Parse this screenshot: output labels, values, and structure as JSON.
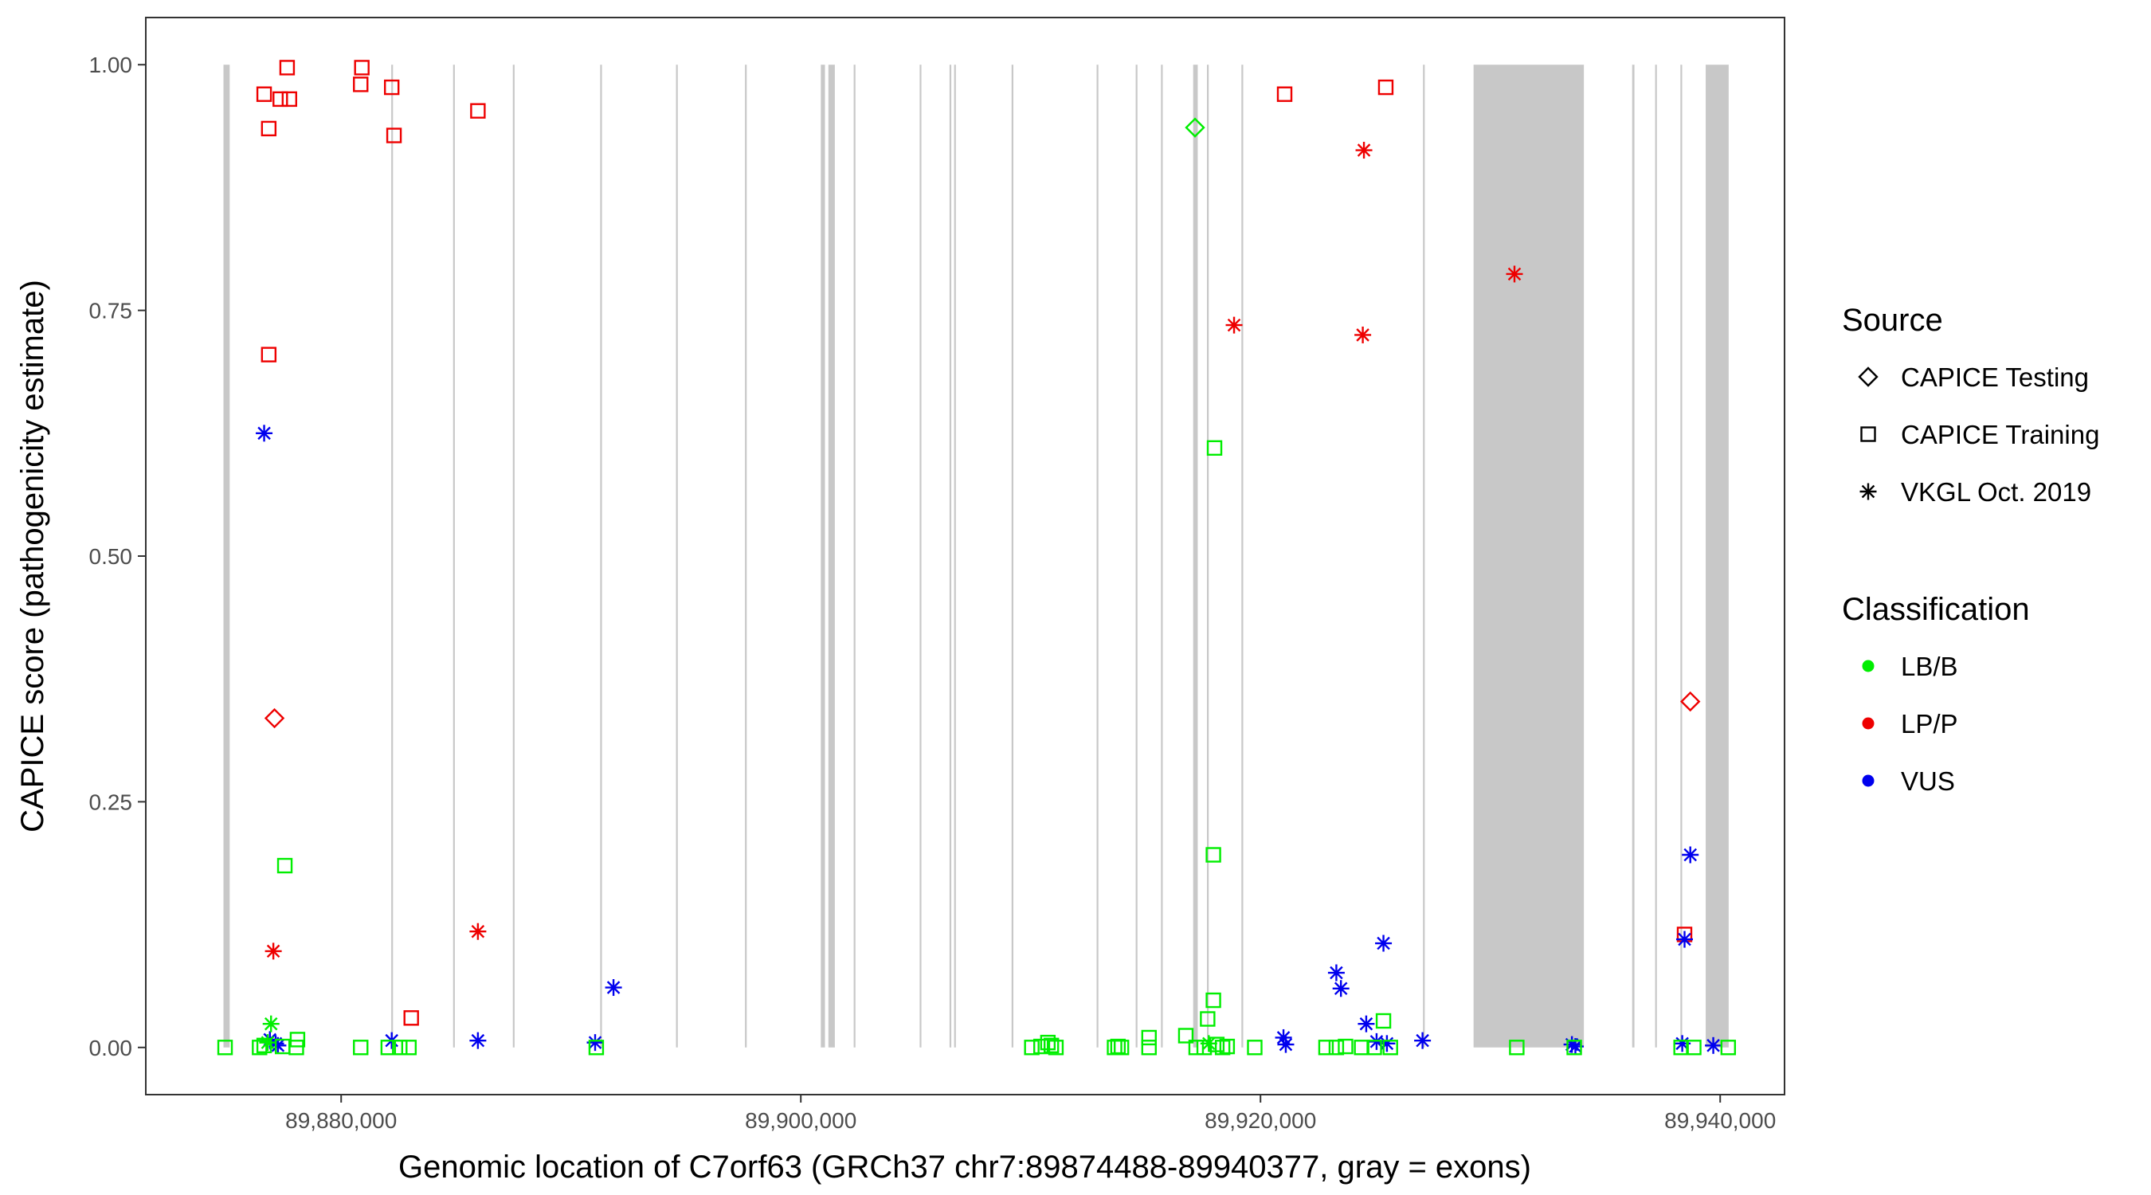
{
  "chart_data": {
    "type": "scatter",
    "xlabel": "Genomic location of C7orf63 (GRCh37 chr7:89874488-89940377, gray = exons)",
    "ylabel": "CAPICE score (pathogenicity estimate)",
    "xlim": [
      89871500,
      89942800
    ],
    "ylim": [
      -0.048,
      1.048
    ],
    "xticks": [
      89880000,
      89900000,
      89920000,
      89940000
    ],
    "xtick_labels": [
      "89,880,000",
      "89,900,000",
      "89,920,000",
      "89,940,000"
    ],
    "yticks": [
      0,
      0.25,
      0.5,
      0.75,
      1
    ],
    "ytick_labels": [
      "0.00",
      "0.25",
      "0.50",
      "0.75",
      "1.00"
    ],
    "grid": false,
    "exon_color": "#c8c8c8",
    "exons": [
      [
        89874880,
        89875150
      ],
      [
        89882180,
        89882230
      ],
      [
        89884870,
        89884920
      ],
      [
        89887470,
        89887520
      ],
      [
        89891270,
        89891320
      ],
      [
        89894570,
        89894620
      ],
      [
        89897570,
        89897620
      ],
      [
        89900870,
        89901050
      ],
      [
        89901200,
        89901480
      ],
      [
        89902300,
        89902350
      ],
      [
        89905170,
        89905220
      ],
      [
        89906470,
        89906530
      ],
      [
        89906670,
        89906730
      ],
      [
        89909170,
        89909230
      ],
      [
        89912870,
        89912940
      ],
      [
        89914570,
        89914630
      ],
      [
        89915670,
        89915740
      ],
      [
        89917070,
        89917270
      ],
      [
        89917670,
        89917730
      ],
      [
        89919170,
        89919230
      ],
      [
        89927070,
        89927120
      ],
      [
        89929270,
        89934070
      ],
      [
        89936170,
        89936270
      ],
      [
        89937170,
        89937230
      ],
      [
        89938270,
        89938320
      ],
      [
        89939370,
        89940370
      ]
    ],
    "legend": {
      "position": "right",
      "source_title": "Source",
      "classification_title": "Classification",
      "sources": [
        {
          "key": "testing",
          "label": "CAPICE Testing",
          "shape": "diamond"
        },
        {
          "key": "training",
          "label": "CAPICE Training",
          "shape": "square"
        },
        {
          "key": "vkgl",
          "label": "VKGL Oct. 2019",
          "shape": "asterisk"
        }
      ],
      "classifications": [
        {
          "key": "LB/B",
          "label": "LB/B",
          "color": "#00ee00"
        },
        {
          "key": "LP/P",
          "label": "LP/P",
          "color": "#ee0000"
        },
        {
          "key": "VUS",
          "label": "VUS",
          "color": "#0000ee"
        }
      ]
    },
    "points": [
      {
        "x": 89876650,
        "y": 0.97,
        "source": "training",
        "class": "LP/P"
      },
      {
        "x": 89877650,
        "y": 0.997,
        "source": "training",
        "class": "LP/P"
      },
      {
        "x": 89877350,
        "y": 0.965,
        "source": "training",
        "class": "LP/P"
      },
      {
        "x": 89877750,
        "y": 0.965,
        "source": "training",
        "class": "LP/P"
      },
      {
        "x": 89876850,
        "y": 0.935,
        "source": "training",
        "class": "LP/P"
      },
      {
        "x": 89880900,
        "y": 0.997,
        "source": "training",
        "class": "LP/P"
      },
      {
        "x": 89880850,
        "y": 0.98,
        "source": "training",
        "class": "LP/P"
      },
      {
        "x": 89882200,
        "y": 0.977,
        "source": "training",
        "class": "LP/P"
      },
      {
        "x": 89882300,
        "y": 0.928,
        "source": "training",
        "class": "LP/P"
      },
      {
        "x": 89885950,
        "y": 0.953,
        "source": "training",
        "class": "LP/P"
      },
      {
        "x": 89876850,
        "y": 0.705,
        "source": "training",
        "class": "LP/P"
      },
      {
        "x": 89877100,
        "y": 0.335,
        "source": "testing",
        "class": "LP/P"
      },
      {
        "x": 89883050,
        "y": 0.03,
        "source": "training",
        "class": "LP/P"
      },
      {
        "x": 89921050,
        "y": 0.97,
        "source": "training",
        "class": "LP/P"
      },
      {
        "x": 89925450,
        "y": 0.977,
        "source": "training",
        "class": "LP/P"
      },
      {
        "x": 89938450,
        "y": 0.115,
        "source": "training",
        "class": "LP/P"
      },
      {
        "x": 89938700,
        "y": 0.352,
        "source": "testing",
        "class": "LP/P"
      },
      {
        "x": 89877050,
        "y": 0.098,
        "source": "vkgl",
        "class": "LP/P"
      },
      {
        "x": 89885950,
        "y": 0.118,
        "source": "vkgl",
        "class": "LP/P"
      },
      {
        "x": 89918850,
        "y": 0.735,
        "source": "vkgl",
        "class": "LP/P"
      },
      {
        "x": 89924500,
        "y": 0.913,
        "source": "vkgl",
        "class": "LP/P"
      },
      {
        "x": 89924450,
        "y": 0.725,
        "source": "vkgl",
        "class": "LP/P"
      },
      {
        "x": 89931050,
        "y": 0.787,
        "source": "vkgl",
        "class": "LP/P"
      },
      {
        "x": 89876650,
        "y": 0.625,
        "source": "vkgl",
        "class": "VUS"
      },
      {
        "x": 89876900,
        "y": 0.008,
        "source": "vkgl",
        "class": "VUS"
      },
      {
        "x": 89877150,
        "y": 0.004,
        "source": "vkgl",
        "class": "VUS"
      },
      {
        "x": 89877250,
        "y": 0.002,
        "source": "vkgl",
        "class": "VUS"
      },
      {
        "x": 89882200,
        "y": 0.007,
        "source": "vkgl",
        "class": "VUS"
      },
      {
        "x": 89885950,
        "y": 0.007,
        "source": "vkgl",
        "class": "VUS"
      },
      {
        "x": 89891050,
        "y": 0.005,
        "source": "vkgl",
        "class": "VUS"
      },
      {
        "x": 89891850,
        "y": 0.061,
        "source": "vkgl",
        "class": "VUS"
      },
      {
        "x": 89921000,
        "y": 0.01,
        "source": "vkgl",
        "class": "VUS"
      },
      {
        "x": 89921100,
        "y": 0.003,
        "source": "vkgl",
        "class": "VUS"
      },
      {
        "x": 89923300,
        "y": 0.076,
        "source": "vkgl",
        "class": "VUS"
      },
      {
        "x": 89923500,
        "y": 0.06,
        "source": "vkgl",
        "class": "VUS"
      },
      {
        "x": 89924600,
        "y": 0.024,
        "source": "vkgl",
        "class": "VUS"
      },
      {
        "x": 89925050,
        "y": 0.006,
        "source": "vkgl",
        "class": "VUS"
      },
      {
        "x": 89925500,
        "y": 0.004,
        "source": "vkgl",
        "class": "VUS"
      },
      {
        "x": 89925350,
        "y": 0.106,
        "source": "vkgl",
        "class": "VUS"
      },
      {
        "x": 89927050,
        "y": 0.007,
        "source": "vkgl",
        "class": "VUS"
      },
      {
        "x": 89933550,
        "y": 0.003,
        "source": "vkgl",
        "class": "VUS"
      },
      {
        "x": 89933700,
        "y": 0.001,
        "source": "vkgl",
        "class": "VUS"
      },
      {
        "x": 89938350,
        "y": 0.004,
        "source": "vkgl",
        "class": "VUS"
      },
      {
        "x": 89938450,
        "y": 0.11,
        "source": "vkgl",
        "class": "VUS"
      },
      {
        "x": 89938700,
        "y": 0.196,
        "source": "vkgl",
        "class": "VUS"
      },
      {
        "x": 89939700,
        "y": 0.002,
        "source": "vkgl",
        "class": "VUS"
      },
      {
        "x": 89876950,
        "y": 0.024,
        "source": "vkgl",
        "class": "LB/B"
      },
      {
        "x": 89876800,
        "y": 0.005,
        "source": "vkgl",
        "class": "LB/B"
      },
      {
        "x": 89877550,
        "y": 0.185,
        "source": "training",
        "class": "LB/B"
      },
      {
        "x": 89874950,
        "y": 0.0,
        "source": "training",
        "class": "LB/B"
      },
      {
        "x": 89876450,
        "y": 0.0,
        "source": "training",
        "class": "LB/B"
      },
      {
        "x": 89876650,
        "y": 0.002,
        "source": "training",
        "class": "LB/B"
      },
      {
        "x": 89877450,
        "y": 0.001,
        "source": "training",
        "class": "LB/B"
      },
      {
        "x": 89878050,
        "y": 0.0,
        "source": "training",
        "class": "LB/B"
      },
      {
        "x": 89878100,
        "y": 0.008,
        "source": "training",
        "class": "LB/B"
      },
      {
        "x": 89880850,
        "y": 0.0,
        "source": "training",
        "class": "LB/B"
      },
      {
        "x": 89882050,
        "y": 0.0,
        "source": "training",
        "class": "LB/B"
      },
      {
        "x": 89882550,
        "y": 0.0,
        "source": "training",
        "class": "LB/B"
      },
      {
        "x": 89882950,
        "y": 0.0,
        "source": "training",
        "class": "LB/B"
      },
      {
        "x": 89891100,
        "y": 0.0,
        "source": "training",
        "class": "LB/B"
      },
      {
        "x": 89910050,
        "y": 0.0,
        "source": "training",
        "class": "LB/B"
      },
      {
        "x": 89910450,
        "y": 0.001,
        "source": "training",
        "class": "LB/B"
      },
      {
        "x": 89910750,
        "y": 0.005,
        "source": "training",
        "class": "LB/B"
      },
      {
        "x": 89910900,
        "y": 0.002,
        "source": "training",
        "class": "LB/B"
      },
      {
        "x": 89911100,
        "y": 0.0,
        "source": "training",
        "class": "LB/B"
      },
      {
        "x": 89913650,
        "y": 0.0,
        "source": "training",
        "class": "LB/B"
      },
      {
        "x": 89913800,
        "y": 0.001,
        "source": "training",
        "class": "LB/B"
      },
      {
        "x": 89913950,
        "y": 0.0,
        "source": "training",
        "class": "LB/B"
      },
      {
        "x": 89915150,
        "y": 0.01,
        "source": "training",
        "class": "LB/B"
      },
      {
        "x": 89915150,
        "y": 0.0,
        "source": "training",
        "class": "LB/B"
      },
      {
        "x": 89916750,
        "y": 0.012,
        "source": "training",
        "class": "LB/B"
      },
      {
        "x": 89917200,
        "y": 0.0,
        "source": "training",
        "class": "LB/B"
      },
      {
        "x": 89917150,
        "y": 0.936,
        "source": "testing",
        "class": "LB/B"
      },
      {
        "x": 89917550,
        "y": 0.0,
        "source": "training",
        "class": "LB/B"
      },
      {
        "x": 89917700,
        "y": 0.029,
        "source": "training",
        "class": "LB/B"
      },
      {
        "x": 89917950,
        "y": 0.048,
        "source": "training",
        "class": "LB/B"
      },
      {
        "x": 89918000,
        "y": 0.61,
        "source": "training",
        "class": "LB/B"
      },
      {
        "x": 89917950,
        "y": 0.196,
        "source": "training",
        "class": "LB/B"
      },
      {
        "x": 89918100,
        "y": 0.003,
        "source": "training",
        "class": "LB/B"
      },
      {
        "x": 89918350,
        "y": 0.0,
        "source": "training",
        "class": "LB/B"
      },
      {
        "x": 89918550,
        "y": 0.001,
        "source": "training",
        "class": "LB/B"
      },
      {
        "x": 89919750,
        "y": 0.0,
        "source": "training",
        "class": "LB/B"
      },
      {
        "x": 89917750,
        "y": 0.004,
        "source": "vkgl",
        "class": "LB/B"
      },
      {
        "x": 89922850,
        "y": 0.0,
        "source": "training",
        "class": "LB/B"
      },
      {
        "x": 89923300,
        "y": 0.0,
        "source": "training",
        "class": "LB/B"
      },
      {
        "x": 89923700,
        "y": 0.001,
        "source": "training",
        "class": "LB/B"
      },
      {
        "x": 89924400,
        "y": 0.0,
        "source": "training",
        "class": "LB/B"
      },
      {
        "x": 89924950,
        "y": 0.0,
        "source": "training",
        "class": "LB/B"
      },
      {
        "x": 89925350,
        "y": 0.027,
        "source": "training",
        "class": "LB/B"
      },
      {
        "x": 89925650,
        "y": 0.0,
        "source": "training",
        "class": "LB/B"
      },
      {
        "x": 89931150,
        "y": 0.0,
        "source": "training",
        "class": "LB/B"
      },
      {
        "x": 89933650,
        "y": 0.0,
        "source": "training",
        "class": "LB/B"
      },
      {
        "x": 89938300,
        "y": 0.0,
        "source": "training",
        "class": "LB/B"
      },
      {
        "x": 89938850,
        "y": 0.0,
        "source": "training",
        "class": "LB/B"
      },
      {
        "x": 89940350,
        "y": 0.0,
        "source": "training",
        "class": "LB/B"
      }
    ]
  }
}
